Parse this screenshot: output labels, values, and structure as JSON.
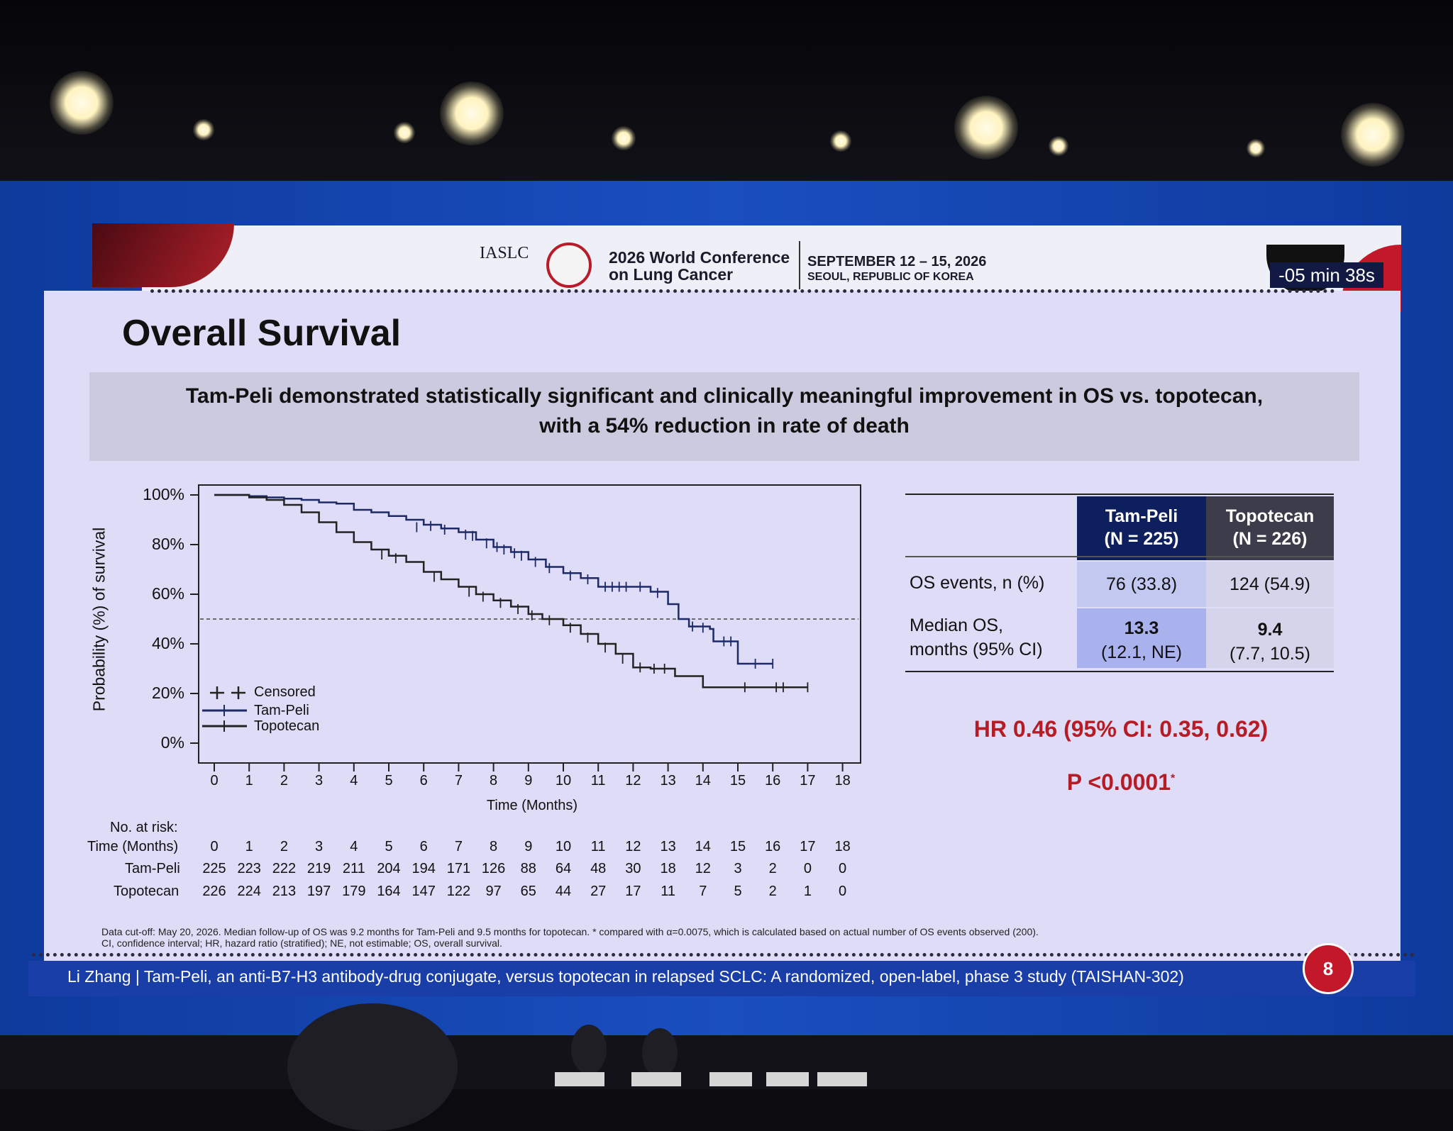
{
  "header": {
    "org": "IASLC",
    "conference_line1": "2026 World Conference",
    "conference_line2": "on Lung Cancer",
    "date": "SEPTEMBER 12 – 15, 2026",
    "location": "SEOUL, REPUBLIC OF KOREA",
    "timer": "-05 min 38s"
  },
  "slide": {
    "title": "Overall Survival",
    "banner_line1": "Tam-Peli demonstrated statistically significant and clinically meaningful improvement in OS vs. topotecan,",
    "banner_line2": "with a 54% reduction in rate of death",
    "hr_text": "HR 0.46 (95% CI: 0.35, 0.62)",
    "p_text": "P <0.0001",
    "p_mark": "*",
    "footnote_line1": "Data cut-off: May 20, 2026. Median follow-up of OS was 9.2 months for Tam-Peli and 9.5 months for topotecan. * compared with α=0.0075, which is calculated based on actual number of OS events observed (200).",
    "footnote_line2": "CI, confidence interval; HR, hazard ratio (stratified); NE, not estimable; OS, overall survival.",
    "bottom_text": "Li Zhang  |  Tam-Peli, an anti-B7-H3 antibody-drug conjugate, versus topotecan in relapsed SCLC: A randomized, open-label, phase 3 study (TAISHAN-302)",
    "page_number": "8"
  },
  "table": {
    "col1_line1": "Tam-Peli",
    "col1_line2": "(N = 225)",
    "col2_line1": "Topotecan",
    "col2_line2": "(N = 226)",
    "row1_label": "OS events, n (%)",
    "row1_c1": "76 (33.8)",
    "row1_c2": "124 (54.9)",
    "row2_label_line1": "Median OS,",
    "row2_label_line2": "months (95% CI)",
    "row2_c1_main": "13.3",
    "row2_c1_ci": "(12.1, NE)",
    "row2_c2_main": "9.4",
    "row2_c2_ci": "(7.7, 10.5)",
    "colors": {
      "tam_header": "#0d1f5c",
      "topo_header": "#3c3c4a",
      "tam_cell": "#c2c8f0",
      "topo_cell": "#d6d4ea"
    }
  },
  "chart_data": {
    "type": "line",
    "ylabel": "Probability (%) of survival",
    "xlabel": "Time (Months)",
    "xlim": [
      0,
      18
    ],
    "ylim": [
      0,
      100
    ],
    "xticks": [
      "0",
      "1",
      "2",
      "3",
      "4",
      "5",
      "6",
      "7",
      "8",
      "9",
      "10",
      "11",
      "12",
      "13",
      "14",
      "15",
      "16",
      "17",
      "18"
    ],
    "yticks": [
      "0%",
      "20%",
      "40%",
      "60%",
      "80%",
      "100%"
    ],
    "reference_line_y": 50,
    "legend": {
      "censored": "Censored",
      "position": "bottom-left"
    },
    "series": [
      {
        "name": "Tam-Peli",
        "step": [
          [
            0,
            100
          ],
          [
            0.5,
            100
          ],
          [
            1,
            99.5
          ],
          [
            1.5,
            99
          ],
          [
            2,
            98.5
          ],
          [
            2.5,
            98
          ],
          [
            3,
            97
          ],
          [
            3.5,
            96.5
          ],
          [
            4,
            94
          ],
          [
            4.5,
            93
          ],
          [
            5,
            91.5
          ],
          [
            5.5,
            90
          ],
          [
            6,
            88
          ],
          [
            6.5,
            86.5
          ],
          [
            7,
            85
          ],
          [
            7.5,
            82
          ],
          [
            8,
            79
          ],
          [
            8.5,
            77
          ],
          [
            9,
            74
          ],
          [
            9.5,
            71
          ],
          [
            10,
            68.5
          ],
          [
            10.5,
            66.5
          ],
          [
            11,
            63
          ],
          [
            12,
            63
          ],
          [
            12.5,
            61
          ],
          [
            13,
            56
          ],
          [
            13.3,
            50
          ],
          [
            13.6,
            47
          ],
          [
            14.2,
            46
          ],
          [
            14.3,
            41
          ],
          [
            15,
            41
          ],
          [
            15,
            32
          ],
          [
            16,
            32
          ]
        ],
        "censors": [
          [
            5.8,
            87
          ],
          [
            6.2,
            87.5
          ],
          [
            6.6,
            86
          ],
          [
            7.2,
            84
          ],
          [
            7.4,
            83.5
          ],
          [
            7.8,
            80.5
          ],
          [
            8.1,
            79
          ],
          [
            8.3,
            78
          ],
          [
            8.6,
            76.5
          ],
          [
            8.8,
            75.5
          ],
          [
            9.2,
            73
          ],
          [
            9.6,
            70.5
          ],
          [
            10.2,
            67.5
          ],
          [
            10.7,
            66
          ],
          [
            11.2,
            63
          ],
          [
            11.4,
            63
          ],
          [
            11.6,
            63
          ],
          [
            11.8,
            63
          ],
          [
            12.2,
            63
          ],
          [
            12.7,
            60.5
          ],
          [
            13.7,
            47
          ],
          [
            14,
            46.5
          ],
          [
            14.6,
            41
          ],
          [
            14.8,
            41
          ],
          [
            15.5,
            32
          ],
          [
            16,
            32
          ]
        ]
      },
      {
        "name": "Topotecan",
        "step": [
          [
            0,
            100
          ],
          [
            0.5,
            100
          ],
          [
            1,
            99
          ],
          [
            1.5,
            98
          ],
          [
            2,
            96
          ],
          [
            2.5,
            93
          ],
          [
            3,
            89
          ],
          [
            3.5,
            85
          ],
          [
            4,
            81
          ],
          [
            4.5,
            78
          ],
          [
            5,
            75.5
          ],
          [
            5.5,
            73
          ],
          [
            6,
            69
          ],
          [
            6.5,
            66
          ],
          [
            7,
            63
          ],
          [
            7.5,
            60
          ],
          [
            8,
            57.5
          ],
          [
            8.5,
            55
          ],
          [
            9,
            52
          ],
          [
            9.4,
            50
          ],
          [
            10,
            47.5
          ],
          [
            10.5,
            44
          ],
          [
            11,
            40
          ],
          [
            11.5,
            36
          ],
          [
            12,
            30.5
          ],
          [
            12.5,
            30
          ],
          [
            13,
            30
          ],
          [
            13.2,
            27
          ],
          [
            14,
            27
          ],
          [
            14,
            22.5
          ],
          [
            17,
            22.5
          ]
        ],
        "censors": [
          [
            4.8,
            76
          ],
          [
            5.2,
            74.5
          ],
          [
            6.3,
            67
          ],
          [
            7.3,
            61
          ],
          [
            7.7,
            59
          ],
          [
            8.2,
            56.5
          ],
          [
            8.7,
            54
          ],
          [
            9.1,
            51.5
          ],
          [
            9.6,
            49.5
          ],
          [
            10.2,
            46.5
          ],
          [
            10.7,
            42.5
          ],
          [
            11.2,
            38.5
          ],
          [
            11.7,
            34
          ],
          [
            12.2,
            30.5
          ],
          [
            12.6,
            30
          ],
          [
            12.9,
            30
          ],
          [
            15.2,
            22.5
          ],
          [
            16.1,
            22.5
          ],
          [
            16.3,
            22.5
          ],
          [
            17,
            22.5
          ]
        ]
      }
    ],
    "at_risk": {
      "title": "No. at risk:",
      "row_label": "Time (Months)",
      "times": [
        "0",
        "1",
        "2",
        "3",
        "4",
        "5",
        "6",
        "7",
        "8",
        "9",
        "10",
        "11",
        "12",
        "13",
        "14",
        "15",
        "16",
        "17",
        "18"
      ],
      "groups": [
        {
          "name": "Tam-Peli",
          "values": [
            "225",
            "223",
            "222",
            "219",
            "211",
            "204",
            "194",
            "171",
            "126",
            "88",
            "64",
            "48",
            "30",
            "18",
            "12",
            "3",
            "2",
            "0",
            "0"
          ]
        },
        {
          "name": "Topotecan",
          "values": [
            "226",
            "224",
            "213",
            "197",
            "179",
            "164",
            "147",
            "122",
            "97",
            "65",
            "44",
            "27",
            "17",
            "11",
            "7",
            "5",
            "2",
            "1",
            "0"
          ]
        }
      ]
    }
  }
}
